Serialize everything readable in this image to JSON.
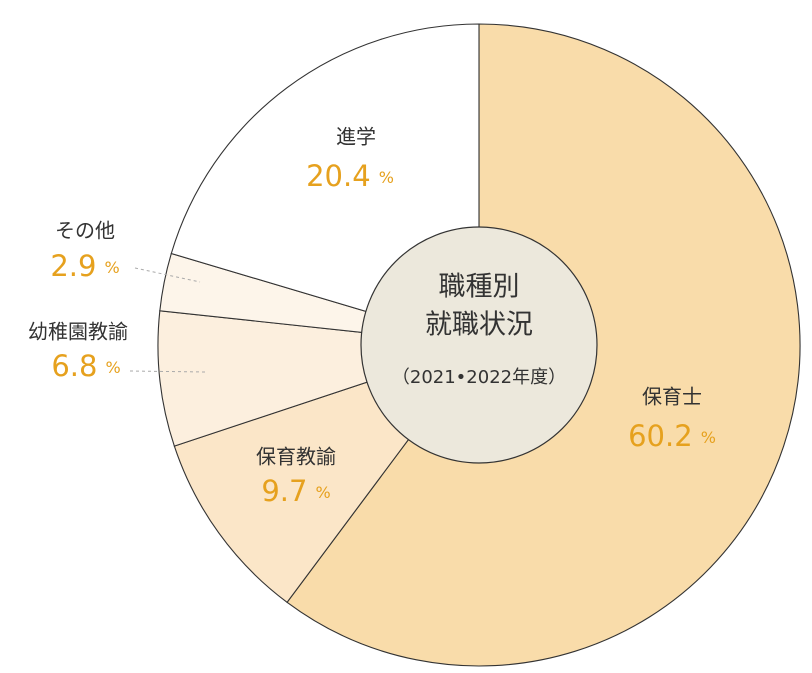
{
  "chart_data": {
    "type": "pie",
    "title": [
      "職種別",
      "就職状況"
    ],
    "subtitle": "（2021•2022年度）",
    "categories": [
      "保育士",
      "保育教諭",
      "幼稚園教諭",
      "その他",
      "進学"
    ],
    "values": [
      60.2,
      9.7,
      6.8,
      2.9,
      20.4
    ],
    "unit": "%",
    "colors": [
      "#f9dcaa",
      "#fbe6c8",
      "#fcefde",
      "#fdf5ea",
      "#ffffff"
    ],
    "label_color": "#e6a11e"
  }
}
